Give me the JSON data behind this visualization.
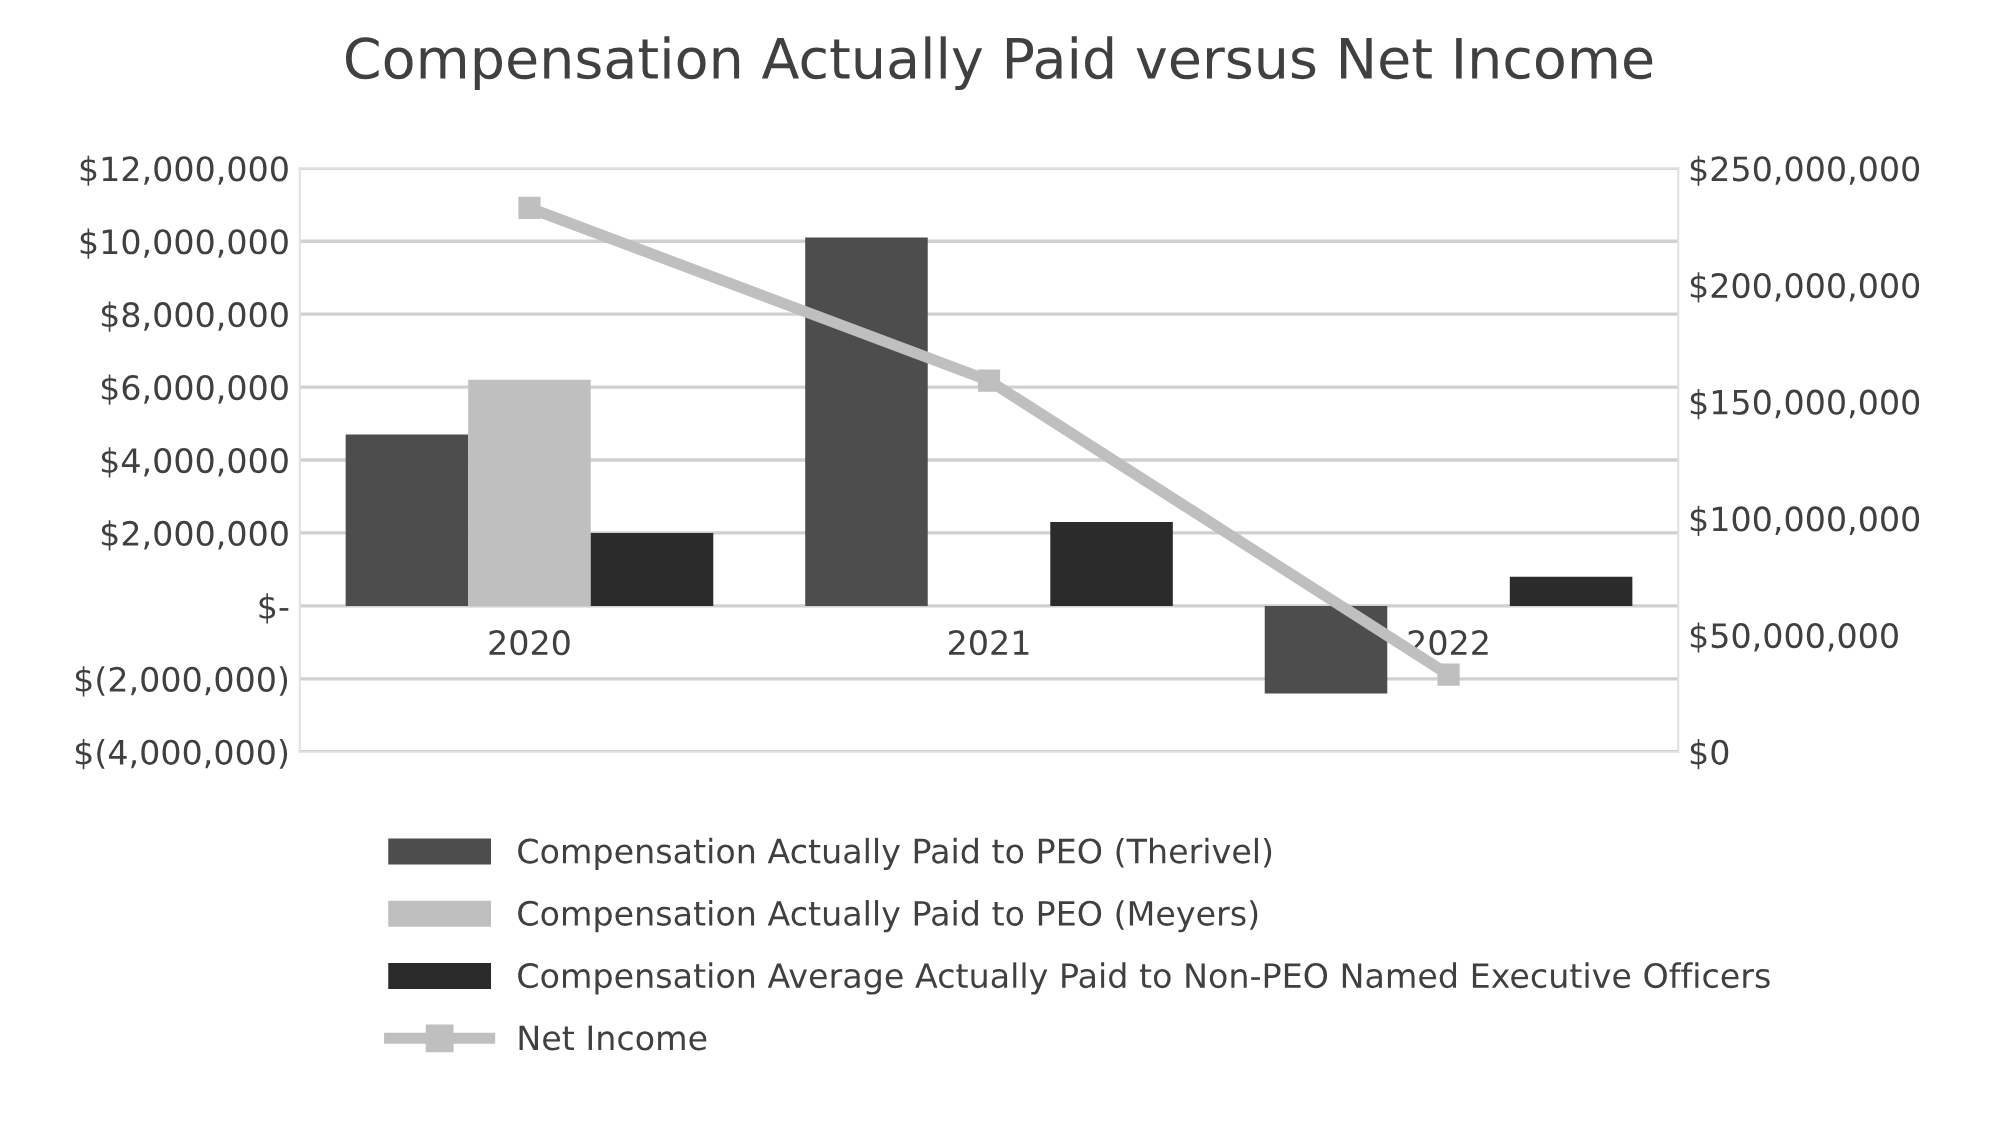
{
  "chart_data": {
    "type": "bar",
    "title": "Compensation Actually Paid versus Net Income",
    "categories": [
      "2020",
      "2021",
      "2022"
    ],
    "series": [
      {
        "name": "Compensation Actually Paid to PEO (Therivel)",
        "color": "#4d4d4d",
        "values": [
          4700000,
          10100000,
          -2400000
        ]
      },
      {
        "name": "Compensation Actually Paid to PEO (Meyers)",
        "color": "#bfbfbf",
        "values": [
          6200000,
          null,
          null
        ]
      },
      {
        "name": "Compensation Average Actually Paid to Non-PEO Named Executive Officers",
        "color": "#2b2b2b",
        "values": [
          2000000,
          2300000,
          800000
        ]
      },
      {
        "name": "Net Income",
        "type": "line",
        "axis": "y2",
        "color": "#bfbfbf",
        "marker": "square",
        "values": [
          233000000,
          159000000,
          33000000
        ]
      }
    ],
    "ylim": [
      -4000000,
      12000000
    ],
    "yticks": [
      {
        "value": -4000000,
        "label": "$(4,000,000)"
      },
      {
        "value": -2000000,
        "label": "$(2,000,000)"
      },
      {
        "value": 0,
        "label": "$-"
      },
      {
        "value": 2000000,
        "label": "$2,000,000"
      },
      {
        "value": 4000000,
        "label": "$4,000,000"
      },
      {
        "value": 6000000,
        "label": "$6,000,000"
      },
      {
        "value": 8000000,
        "label": "$8,000,000"
      },
      {
        "value": 10000000,
        "label": "$10,000,000"
      },
      {
        "value": 12000000,
        "label": "$12,000,000"
      }
    ],
    "y2lim": [
      0,
      250000000
    ],
    "y2ticks": [
      {
        "value": 0,
        "label": "$0"
      },
      {
        "value": 50000000,
        "label": "$50,000,000"
      },
      {
        "value": 100000000,
        "label": "$100,000,000"
      },
      {
        "value": 150000000,
        "label": "$150,000,000"
      },
      {
        "value": 200000000,
        "label": "$200,000,000"
      },
      {
        "value": 250000000,
        "label": "$250,000,000"
      }
    ],
    "grid": "y",
    "legend": "bottom"
  }
}
